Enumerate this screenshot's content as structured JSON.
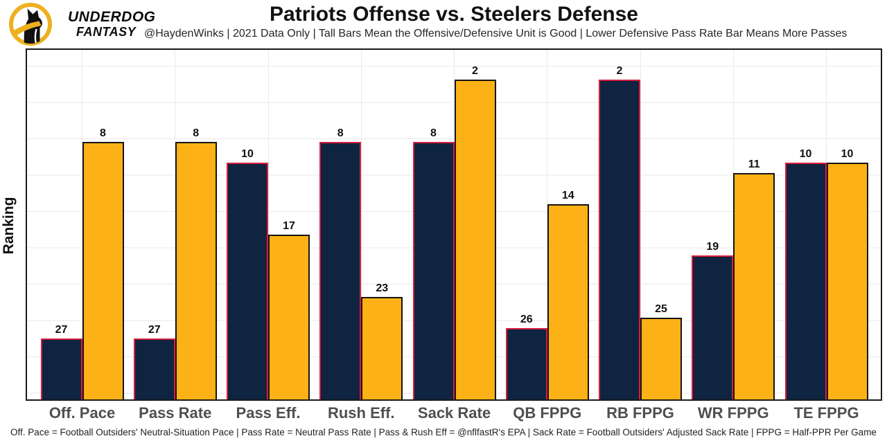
{
  "header": {
    "logo_line1": "UNDERDOG",
    "logo_line2": "FANTASY"
  },
  "chart_data": {
    "type": "bar",
    "title": "Patriots Offense vs. Steelers Defense",
    "subtitle": "@HaydenWinks | 2021 Data Only | Tall Bars Mean the Offensive/Defensive Unit is Good | Lower Defensive Pass Rate Bar Means More Passes",
    "ylabel": "Ranking",
    "footnote": "Off. Pace = Football Outsiders' Neutral-Situation Pace | Pass Rate = Neutral Pass Rate | Pass & Rush Eff = @nflfastR's EPA | Sack Rate = Football Outsiders' Adjusted Sack Rate | FPPG = Half-PPR Per Game",
    "categories": [
      "Off. Pace",
      "Pass Rate",
      "Pass Eff.",
      "Rush Eff.",
      "Sack Rate",
      "QB FPPG",
      "RB FPPG",
      "WR FPPG",
      "TE FPPG"
    ],
    "series": [
      {
        "name": "Patriots Offense",
        "fill": "#0e2440",
        "border": "#d91e3d",
        "values": [
          27,
          27,
          10,
          8,
          8,
          26,
          2,
          19,
          10
        ]
      },
      {
        "name": "Steelers Defense",
        "fill": "#fcb216",
        "border": "#141414",
        "values": [
          8,
          8,
          17,
          23,
          2,
          14,
          25,
          11,
          10
        ]
      }
    ],
    "value_note": "values are rankings; bar height = 33 - ranking (lower rank = taller bar)",
    "ylim": [
      0,
      34
    ],
    "grid": "on",
    "legend": "none",
    "colors": {
      "grid": "#e9e9e9",
      "axis_border": "#1a1a1a",
      "xtick_label": "#4f4f4f",
      "logo_gold": "#edb11f"
    }
  }
}
